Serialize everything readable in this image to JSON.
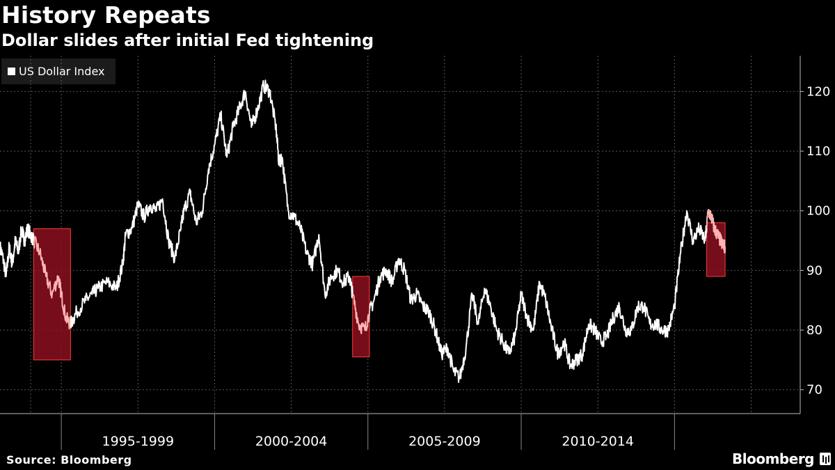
{
  "header": {
    "title": "History Repeats",
    "subtitle": "Dollar slides after initial Fed tightening"
  },
  "footer": {
    "source": "Source: Bloomberg",
    "brand": "Bloomberg"
  },
  "colors": {
    "line": "#ffffff",
    "highlight_fill": "#8a0f1f",
    "highlight_stroke": "#ff3b3b",
    "highlighted_line": "#ffb3b3",
    "grid": "#5a5a5a",
    "background": "#000000"
  },
  "chart_data": {
    "type": "line",
    "title": "History Repeats",
    "subtitle": "Dollar slides after initial Fed tightening",
    "legend": [
      "US Dollar Index"
    ],
    "legend_position": "top-left",
    "x_domain": [
      1990.0,
      2016.1
    ],
    "ylim": [
      66,
      126
    ],
    "yticks": [
      70,
      80,
      90,
      100,
      110,
      120
    ],
    "grid": true,
    "x_period_labels": [
      {
        "label": "1995-1999",
        "start": 1992.0,
        "end": 1997.0
      },
      {
        "label": "2000-2004",
        "start": 1997.0,
        "end": 2002.0
      },
      {
        "label": "2005-2009",
        "start": 2002.0,
        "end": 2007.0
      },
      {
        "label": "2010-2014",
        "start": 2007.0,
        "end": 2012.0
      }
    ],
    "x_gridlines": [
      1991.0,
      1992.0,
      1994.5,
      1997.0,
      1999.5,
      2002.0,
      2004.5,
      2007.0,
      2009.5,
      2012.0,
      2014.5
    ],
    "highlight_periods": [
      {
        "start": 1991.1,
        "end": 1992.3,
        "ymin": 75,
        "ymax": 97
      },
      {
        "start": 2001.5,
        "end": 2002.05,
        "ymin": 75.5,
        "ymax": 89
      },
      {
        "start": 2013.05,
        "end": 2013.65,
        "ymin": 89,
        "ymax": 98
      }
    ],
    "series": [
      {
        "name": "US Dollar Index",
        "x": [
          1990.0,
          1990.1,
          1990.2,
          1990.3,
          1990.4,
          1990.5,
          1990.6,
          1990.7,
          1990.8,
          1990.9,
          1991.0,
          1991.1,
          1991.3,
          1991.5,
          1991.7,
          1991.9,
          1992.0,
          1992.15,
          1992.3,
          1992.5,
          1992.8,
          1993.0,
          1993.2,
          1993.5,
          1993.8,
          1994.0,
          1994.1,
          1994.3,
          1994.5,
          1994.7,
          1994.9,
          1995.1,
          1995.3,
          1995.5,
          1995.7,
          1995.9,
          1996.0,
          1996.2,
          1996.4,
          1996.6,
          1996.8,
          1997.0,
          1997.2,
          1997.4,
          1997.6,
          1997.8,
          1998.0,
          1998.2,
          1998.4,
          1998.6,
          1998.8,
          1999.0,
          1999.1,
          1999.2,
          1999.4,
          1999.6,
          1999.8,
          2000.0,
          2000.2,
          2000.4,
          2000.6,
          2000.8,
          2001.0,
          2001.2,
          2001.4,
          2001.5,
          2001.7,
          2001.9,
          2002.05,
          2002.2,
          2002.4,
          2002.6,
          2002.8,
          2003.0,
          2003.2,
          2003.4,
          2003.6,
          2003.8,
          2004.0,
          2004.2,
          2004.4,
          2004.6,
          2004.8,
          2005.0,
          2005.2,
          2005.4,
          2005.6,
          2005.8,
          2006.0,
          2006.2,
          2006.4,
          2006.6,
          2006.8,
          2007.0,
          2007.2,
          2007.4,
          2007.6,
          2007.8,
          2008.0,
          2008.2,
          2008.4,
          2008.6,
          2008.8,
          2009.0,
          2009.2,
          2009.4,
          2009.6,
          2009.8,
          2010.0,
          2010.2,
          2010.4,
          2010.6,
          2010.8,
          2011.0,
          2011.2,
          2011.4,
          2011.6,
          2011.8,
          2012.0,
          2012.2,
          2012.4,
          2012.6,
          2012.8,
          2013.0,
          2013.1,
          2013.2,
          2013.3,
          2013.4,
          2013.5,
          2013.6,
          2013.65
        ],
        "values": [
          94,
          92,
          89,
          94,
          91,
          95,
          93,
          97,
          95,
          97,
          96,
          95,
          93,
          89,
          86,
          89,
          86,
          82,
          81,
          83,
          85,
          86,
          87,
          88,
          87,
          91,
          96,
          97,
          101,
          99,
          101,
          100,
          102,
          95,
          92,
          97,
          100,
          103,
          98,
          100,
          107,
          111,
          116,
          109,
          114,
          117,
          120,
          114,
          117,
          121,
          120,
          114,
          108,
          109,
          100,
          99,
          97,
          93,
          91,
          96,
          86,
          89,
          90,
          88,
          89,
          86,
          81,
          80,
          83,
          85,
          89,
          90,
          88,
          92,
          90,
          85,
          86,
          84,
          83,
          80,
          76,
          77,
          73,
          72,
          77,
          86,
          81,
          87,
          84,
          80,
          78,
          76,
          79,
          86,
          82,
          80,
          88,
          85,
          80,
          76,
          78,
          74,
          75,
          76,
          81,
          80,
          78,
          79,
          82,
          84,
          80,
          80,
          84,
          84,
          81,
          81,
          80,
          80,
          84,
          93,
          100,
          95,
          97,
          95,
          100,
          99,
          97,
          96,
          95,
          94,
          94
        ],
        "ymin_label": 70
      }
    ]
  }
}
